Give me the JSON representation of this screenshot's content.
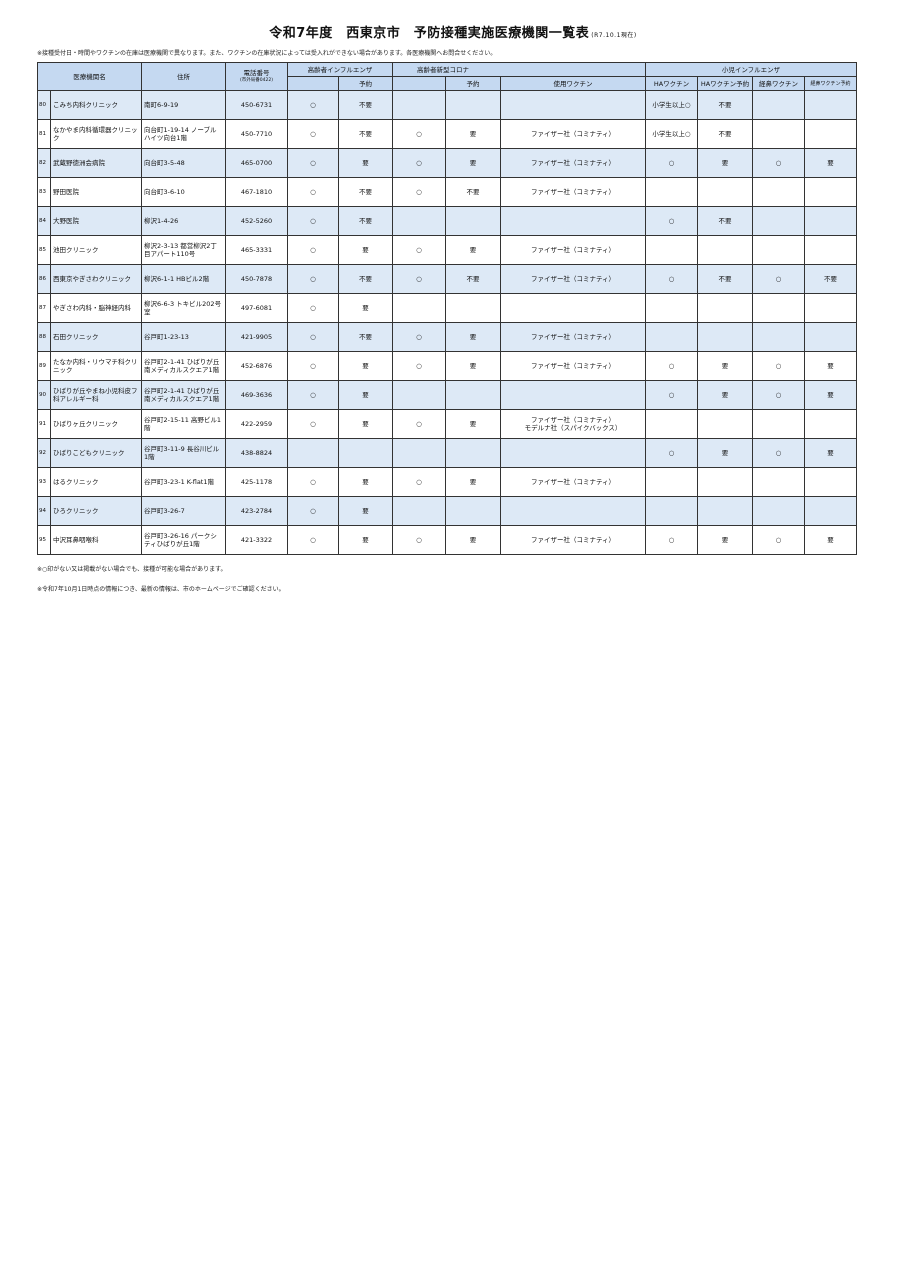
{
  "title": "令和7年度　西東京市　予防接種実施医療機関一覧表",
  "as_of": "(R7.10.1現在)",
  "top_note": "※接種受付日・時間やワクチンの在庫は医療機関で異なります。また、ワクチンの在庫状況によっては受入れができない場合があります。各医療機関へお問合せください。",
  "headers": {
    "name": "医療機関名",
    "address": "住所",
    "phone": "電話番号",
    "phone_sub": "(市外局番0422)",
    "flu_elderly": "高齢者インフルエンザ",
    "flu_reserve": "予約",
    "covid_elderly": "高齢者新型コロナ",
    "covid_reserve": "予約",
    "covid_vaccine": "使用ワクチン",
    "flu_child": "小児インフルエンザ",
    "ha": "HAワクチン",
    "ha_reserve": "HAワクチン予約",
    "nasal": "経鼻ワクチン",
    "nasal_reserve": "経鼻ワクチン予約"
  },
  "rows": [
    {
      "no": "80",
      "name": "こみち内科クリニック",
      "address": "南町6-9-19",
      "phone": "450-6731",
      "flu": "○",
      "flu_res": "不要",
      "cov": "",
      "cov_res": "",
      "vac": "",
      "ha": "小学生以上○",
      "ha_res": "不要",
      "nasal": "",
      "nasal_res": ""
    },
    {
      "no": "81",
      "name": "なかやま内科循環器クリニック",
      "address": "向台町1-19-14 ノーブルハイツ向台1階",
      "phone": "450-7710",
      "flu": "○",
      "flu_res": "不要",
      "cov": "○",
      "cov_res": "要",
      "vac": "ファイザー社（コミナティ）",
      "ha": "小学生以上○",
      "ha_res": "不要",
      "nasal": "",
      "nasal_res": ""
    },
    {
      "no": "82",
      "name": "武蔵野徳洲会病院",
      "address": "向台町3-5-48",
      "phone": "465-0700",
      "flu": "○",
      "flu_res": "要",
      "cov": "○",
      "cov_res": "要",
      "vac": "ファイザー社（コミナティ）",
      "ha": "○",
      "ha_res": "要",
      "nasal": "○",
      "nasal_res": "要"
    },
    {
      "no": "83",
      "name": "野田医院",
      "address": "向台町3-6-10",
      "phone": "467-1810",
      "flu": "○",
      "flu_res": "不要",
      "cov": "○",
      "cov_res": "不要",
      "vac": "ファイザー社（コミナティ）",
      "ha": "",
      "ha_res": "",
      "nasal": "",
      "nasal_res": ""
    },
    {
      "no": "84",
      "name": "大野医院",
      "address": "柳沢1-4-26",
      "phone": "452-5260",
      "flu": "○",
      "flu_res": "不要",
      "cov": "",
      "cov_res": "",
      "vac": "",
      "ha": "○",
      "ha_res": "不要",
      "nasal": "",
      "nasal_res": ""
    },
    {
      "no": "85",
      "name": "池田クリニック",
      "address": "柳沢2-3-13 都営柳沢2丁目アパート110号",
      "phone": "465-3331",
      "flu": "○",
      "flu_res": "要",
      "cov": "○",
      "cov_res": "要",
      "vac": "ファイザー社（コミナティ）",
      "ha": "",
      "ha_res": "",
      "nasal": "",
      "nasal_res": ""
    },
    {
      "no": "86",
      "name": "西東京やぎさわクリニック",
      "address": "柳沢6-1-1 HBビル2階",
      "phone": "450-7878",
      "flu": "○",
      "flu_res": "不要",
      "cov": "○",
      "cov_res": "不要",
      "vac": "ファイザー社（コミナティ）",
      "ha": "○",
      "ha_res": "不要",
      "nasal": "○",
      "nasal_res": "不要"
    },
    {
      "no": "87",
      "name": "やぎさわ内科・脳神経内科",
      "address": "柳沢6-6-3 トキビル202号室",
      "phone": "497-6081",
      "flu": "○",
      "flu_res": "要",
      "cov": "",
      "cov_res": "",
      "vac": "",
      "ha": "",
      "ha_res": "",
      "nasal": "",
      "nasal_res": ""
    },
    {
      "no": "88",
      "name": "石田クリニック",
      "address": "谷戸町1-23-13",
      "phone": "421-9905",
      "flu": "○",
      "flu_res": "不要",
      "cov": "○",
      "cov_res": "要",
      "vac": "ファイザー社（コミナティ）",
      "ha": "",
      "ha_res": "",
      "nasal": "",
      "nasal_res": ""
    },
    {
      "no": "89",
      "name": "たなか内科・リウマチ科クリニック",
      "address": "谷戸町2-1-41 ひばりが丘南メディカルスクエア1階",
      "phone": "452-6876",
      "flu": "○",
      "flu_res": "要",
      "cov": "○",
      "cov_res": "要",
      "vac": "ファイザー社（コミナティ）",
      "ha": "○",
      "ha_res": "要",
      "nasal": "○",
      "nasal_res": "要"
    },
    {
      "no": "90",
      "name": "ひばりが丘やまね小児科皮フ科アレルギー科",
      "address": "谷戸町2-1-41 ひばりが丘南メディカルスクエア1階",
      "phone": "469-3636",
      "flu": "○",
      "flu_res": "要",
      "cov": "",
      "cov_res": "",
      "vac": "",
      "ha": "○",
      "ha_res": "要",
      "nasal": "○",
      "nasal_res": "要"
    },
    {
      "no": "91",
      "name": "ひばりヶ丘クリニック",
      "address": "谷戸町2-15-11 高野ビル1階",
      "phone": "422-2959",
      "flu": "○",
      "flu_res": "要",
      "cov": "○",
      "cov_res": "要",
      "vac": "ファイザー社（コミナティ）",
      "vac2": "モデルナ社（スパイクバックス）",
      "ha": "",
      "ha_res": "",
      "nasal": "",
      "nasal_res": ""
    },
    {
      "no": "92",
      "name": "ひばりこどもクリニック",
      "address": "谷戸町3-11-9 長谷川ビル1階",
      "phone": "438-8824",
      "flu": "",
      "flu_res": "",
      "cov": "",
      "cov_res": "",
      "vac": "",
      "ha": "○",
      "ha_res": "要",
      "nasal": "○",
      "nasal_res": "要"
    },
    {
      "no": "93",
      "name": "はるクリニック",
      "address": "谷戸町3-23-1 K-flat1階",
      "phone": "425-1178",
      "flu": "○",
      "flu_res": "要",
      "cov": "○",
      "cov_res": "要",
      "vac": "ファイザー社（コミナティ）",
      "ha": "",
      "ha_res": "",
      "nasal": "",
      "nasal_res": ""
    },
    {
      "no": "94",
      "name": "ひろクリニック",
      "address": "谷戸町3-26-7",
      "phone": "423-2784",
      "flu": "○",
      "flu_res": "要",
      "cov": "",
      "cov_res": "",
      "vac": "",
      "ha": "",
      "ha_res": "",
      "nasal": "",
      "nasal_res": ""
    },
    {
      "no": "95",
      "name": "中沢耳鼻咽喉科",
      "address": "谷戸町3-26-16 パークシティひばりが丘1階",
      "phone": "421-3322",
      "flu": "○",
      "flu_res": "要",
      "cov": "○",
      "cov_res": "要",
      "vac": "ファイザー社（コミナティ）",
      "ha": "○",
      "ha_res": "要",
      "nasal": "○",
      "nasal_res": "要"
    }
  ],
  "foot_notes": [
    "※○印がない又は掲載がない場合でも、接種が可能な場合があります。",
    "※令和7年10月1日時点の情報につき、最新の情報は、市のホームページでご確認ください。"
  ],
  "colors": {
    "header_bg": "#c5d9f1",
    "row_alt_bg": "#dde9f6"
  }
}
